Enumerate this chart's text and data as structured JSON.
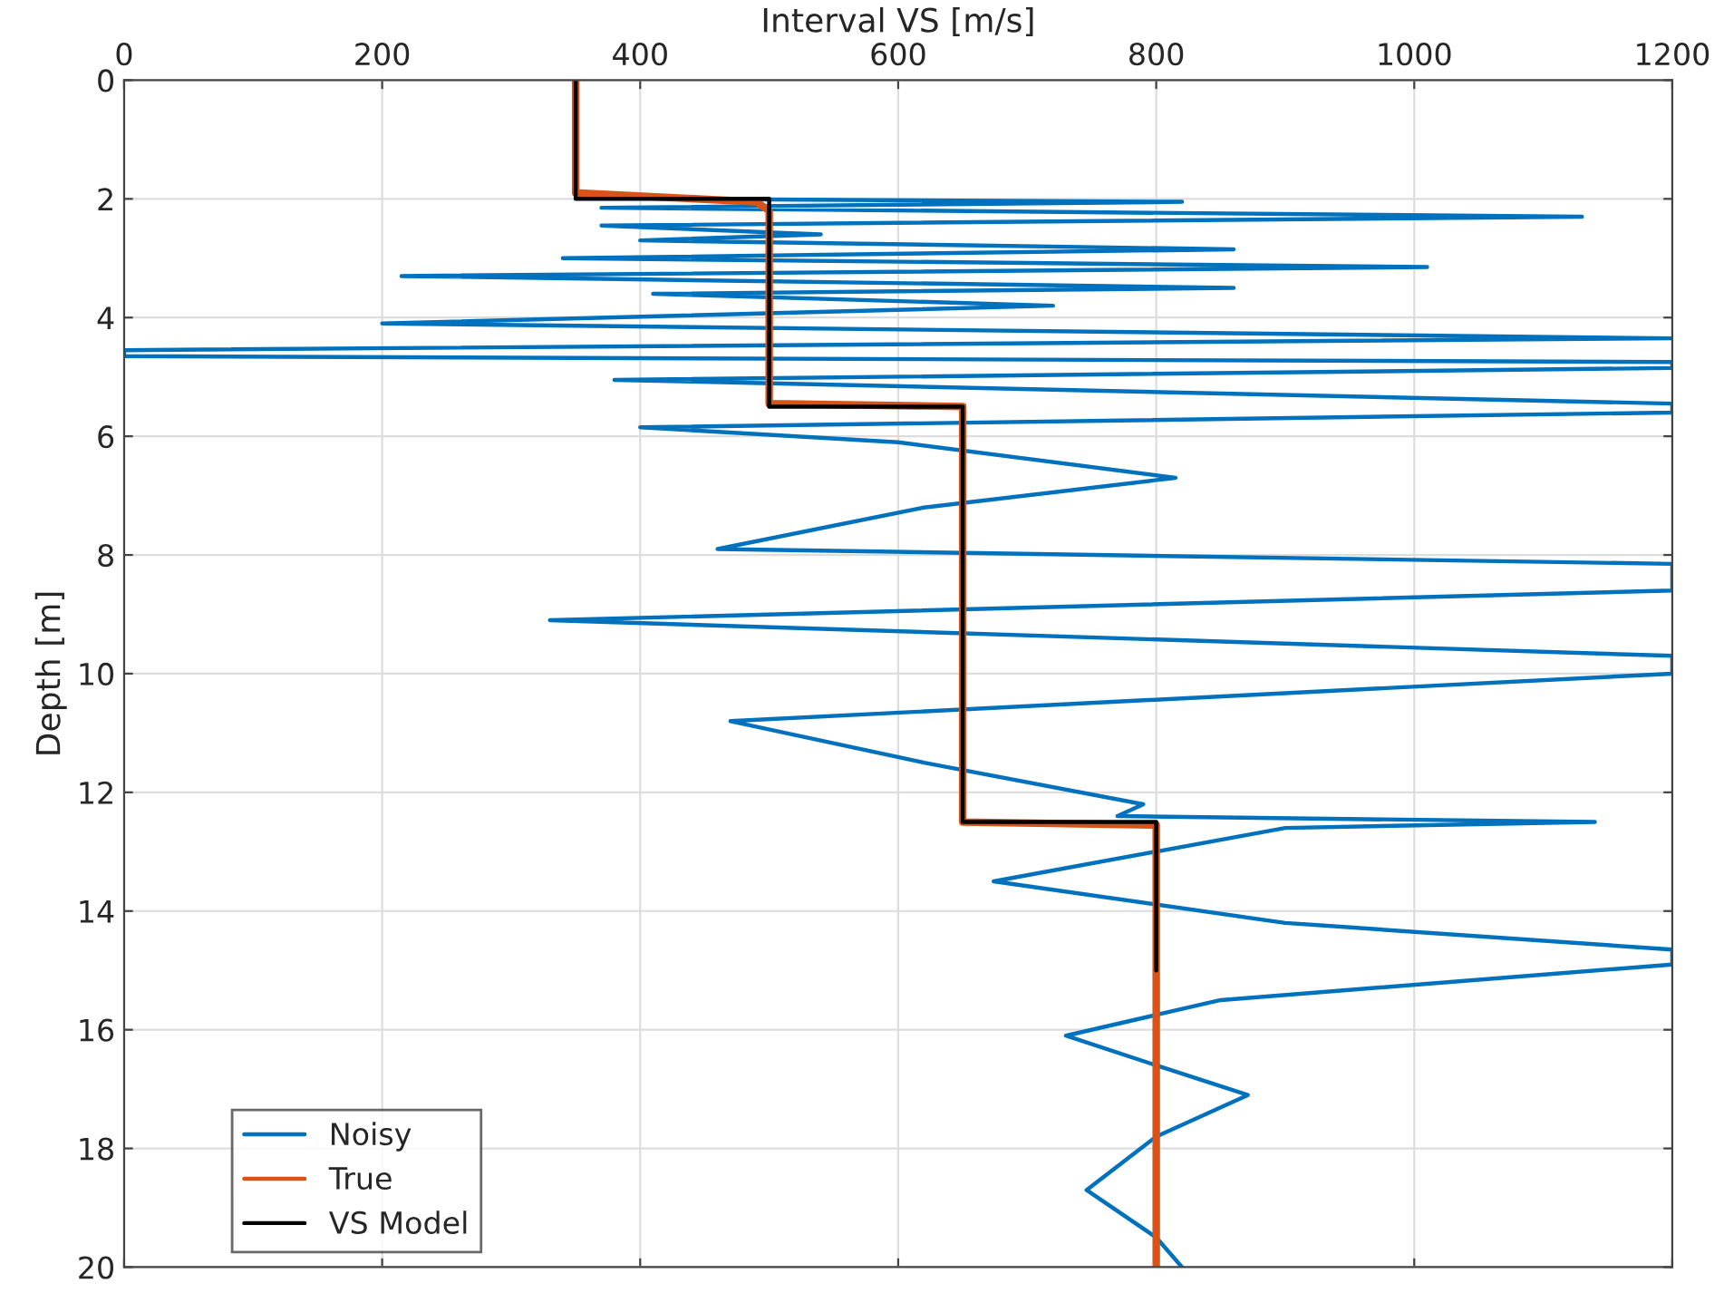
{
  "chart_data": {
    "type": "line",
    "xlabel": "Interval VS [m/s]",
    "ylabel": "Depth [m]",
    "xlim": [
      0,
      1200
    ],
    "xticks": [
      0,
      200,
      400,
      600,
      800,
      1000,
      1200
    ],
    "ylim": [
      20,
      0
    ],
    "yticks": [
      0,
      2,
      4,
      6,
      8,
      10,
      12,
      14,
      16,
      18,
      20
    ],
    "grid": true,
    "legend": "bottom left",
    "marker": "none",
    "line_style": "solid",
    "series": [
      {
        "name": "Noisy",
        "color": "#0072bd",
        "x": [
          420,
          820,
          370,
          1130,
          370,
          540,
          400,
          860,
          340,
          1010,
          215,
          860,
          410,
          720,
          200,
          1200,
          0,
          0,
          1200,
          1200,
          380,
          1200,
          1200,
          400,
          600,
          815,
          620,
          460,
          1200,
          1200,
          330,
          1200,
          1200,
          470,
          620,
          790,
          770,
          1140,
          900,
          674,
          900,
          1200,
          1200,
          850,
          730,
          800,
          871,
          800,
          746,
          800,
          820
        ],
        "values": [
          2.0,
          2.05,
          2.15,
          2.3,
          2.45,
          2.6,
          2.7,
          2.85,
          3.0,
          3.15,
          3.3,
          3.5,
          3.6,
          3.8,
          4.1,
          4.35,
          4.55,
          4.65,
          4.75,
          4.85,
          5.05,
          5.45,
          5.6,
          5.85,
          6.1,
          6.7,
          7.2,
          7.9,
          8.15,
          8.6,
          9.1,
          9.7,
          10.0,
          10.8,
          11.5,
          12.2,
          12.4,
          12.5,
          12.6,
          13.5,
          14.2,
          14.65,
          14.9,
          15.5,
          16.1,
          16.6,
          17.1,
          17.8,
          18.7,
          19.5,
          20.0
        ]
      },
      {
        "name": "True",
        "color": "#d95319",
        "x": [
          350,
          350,
          490,
          500,
          500,
          650,
          650,
          800,
          800
        ],
        "values": [
          0,
          1.9,
          2.05,
          2.2,
          5.45,
          5.5,
          12.5,
          12.55,
          20
        ]
      },
      {
        "name": "VS Model",
        "color": "#000000",
        "x": [
          350,
          350,
          500,
          500,
          650,
          650,
          800,
          800
        ],
        "values": [
          0,
          2,
          2,
          5.5,
          5.5,
          12.5,
          12.5,
          15
        ]
      }
    ]
  }
}
